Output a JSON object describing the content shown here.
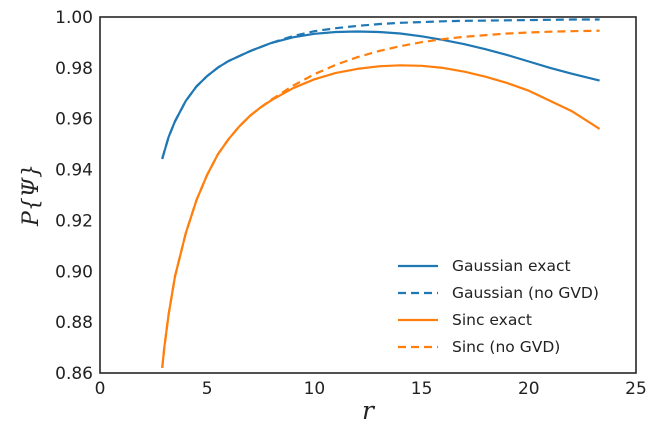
{
  "chart_data": {
    "type": "line",
    "xlabel": "r",
    "ylabel": "P{Ψ}",
    "xlim": [
      0,
      25
    ],
    "ylim": [
      0.86,
      1.0
    ],
    "xticks": [
      0,
      5,
      10,
      15,
      20,
      25
    ],
    "yticks": [
      0.86,
      0.88,
      0.9,
      0.92,
      0.94,
      0.96,
      0.98,
      1.0
    ],
    "xtick_labels": [
      "0",
      "5",
      "10",
      "15",
      "20",
      "25"
    ],
    "ytick_labels": [
      "0.86",
      "0.88",
      "0.90",
      "0.92",
      "0.94",
      "0.96",
      "0.98",
      "1.00"
    ],
    "grid": false,
    "legend_position": "lower-right",
    "colors": {
      "blue": "#1f77b4",
      "orange": "#ff7f0e"
    },
    "series": [
      {
        "name": "Gaussian exact",
        "color": "#1f77b4",
        "linestyle": "solid",
        "x": [
          2.9,
          3.2,
          3.5,
          4.0,
          4.5,
          5.0,
          5.5,
          6.0,
          7.0,
          8.0,
          9.0,
          10.0,
          11.0,
          12.0,
          13.0,
          14.0,
          15.0,
          16.0,
          17.0,
          18.0,
          19.0,
          20.0,
          21.0,
          22.0,
          23.3
        ],
        "y": [
          0.9442,
          0.9528,
          0.959,
          0.967,
          0.9727,
          0.9768,
          0.9801,
          0.9827,
          0.9866,
          0.9898,
          0.992,
          0.9934,
          0.9941,
          0.9943,
          0.9941,
          0.9935,
          0.9924,
          0.991,
          0.9893,
          0.9873,
          0.985,
          0.9825,
          0.98,
          0.9777,
          0.975
        ]
      },
      {
        "name": "Gaussian (no GVD)",
        "color": "#1f77b4",
        "linestyle": "dashed",
        "x": [
          2.9,
          3.2,
          3.5,
          4.0,
          4.5,
          5.0,
          5.5,
          6.0,
          7.0,
          8.0,
          9.0,
          10.0,
          11.0,
          12.0,
          13.0,
          14.0,
          15.0,
          16.0,
          17.0,
          18.0,
          19.0,
          20.0,
          21.0,
          22.0,
          23.3
        ],
        "y": [
          0.9442,
          0.9528,
          0.959,
          0.967,
          0.9727,
          0.9768,
          0.9801,
          0.9827,
          0.9866,
          0.9898,
          0.9925,
          0.9944,
          0.9956,
          0.9965,
          0.9972,
          0.9977,
          0.998,
          0.9983,
          0.9985,
          0.9986,
          0.9987,
          0.9988,
          0.9989,
          0.999,
          0.999
        ]
      },
      {
        "name": "Sinc exact",
        "color": "#ff7f0e",
        "linestyle": "solid",
        "x": [
          2.9,
          3.0,
          3.2,
          3.5,
          4.0,
          4.5,
          5.0,
          5.5,
          6.0,
          6.5,
          7.0,
          7.5,
          8.0,
          9.0,
          10.0,
          11.0,
          12.0,
          13.0,
          14.0,
          15.0,
          16.0,
          17.0,
          18.0,
          19.0,
          20.0,
          21.0,
          22.0,
          23.3
        ],
        "y": [
          0.862,
          0.87,
          0.883,
          0.898,
          0.915,
          0.928,
          0.938,
          0.946,
          0.952,
          0.957,
          0.9612,
          0.9645,
          0.9673,
          0.972,
          0.9755,
          0.978,
          0.9796,
          0.9806,
          0.981,
          0.9808,
          0.98,
          0.9785,
          0.9765,
          0.974,
          0.971,
          0.967,
          0.963,
          0.956
        ]
      },
      {
        "name": "Sinc (no GVD)",
        "color": "#ff7f0e",
        "linestyle": "dashed",
        "x": [
          2.9,
          3.0,
          3.2,
          3.5,
          4.0,
          4.5,
          5.0,
          5.5,
          6.0,
          6.5,
          7.0,
          7.5,
          8.0,
          9.0,
          10.0,
          11.0,
          12.0,
          13.0,
          14.0,
          15.0,
          16.0,
          17.0,
          18.0,
          19.0,
          20.0,
          21.0,
          22.0,
          23.3
        ],
        "y": [
          0.862,
          0.87,
          0.883,
          0.898,
          0.915,
          0.928,
          0.938,
          0.946,
          0.952,
          0.957,
          0.9612,
          0.9645,
          0.9675,
          0.973,
          0.9775,
          0.9812,
          0.9842,
          0.9866,
          0.9885,
          0.9901,
          0.9913,
          0.9922,
          0.9929,
          0.9935,
          0.9939,
          0.9942,
          0.9944,
          0.9946
        ]
      }
    ]
  }
}
